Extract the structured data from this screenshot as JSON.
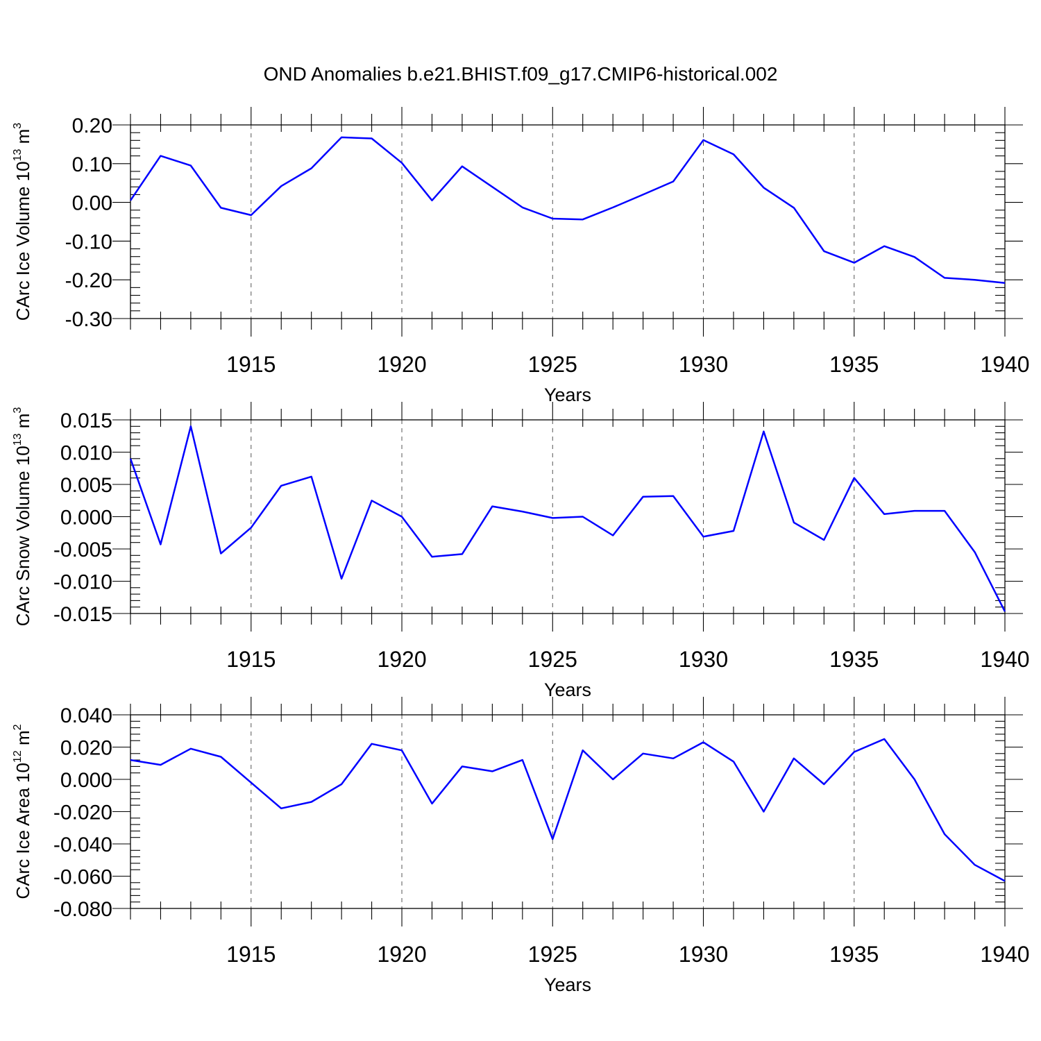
{
  "title": "OND Anomalies b.e21.BHIST.f09_g17.CMIP6-historical.002",
  "colors": {
    "line": "#0000ff",
    "frame": "#000000",
    "grid": "#555555"
  },
  "chart_data": [
    {
      "type": "line",
      "name": "ice-volume",
      "ylabel": {
        "main": "CArc Ice Volume 10",
        "exp": "13",
        "unit": " m",
        "unit_exp": "3"
      },
      "xlabel": "Years",
      "xlim": [
        1911,
        1940
      ],
      "ylim": [
        -0.3,
        0.2
      ],
      "xticks": [
        1915,
        1920,
        1925,
        1930,
        1935,
        1940
      ],
      "xtick_labels": [
        "1915",
        "1920",
        "1925",
        "1930",
        "1935",
        "1940"
      ],
      "yticks": [
        0.2,
        0.1,
        0.0,
        -0.1,
        -0.2,
        -0.3
      ],
      "ytick_labels": [
        "0.20",
        "0.10",
        "0.00",
        "-0.10",
        "-0.20",
        "-0.30"
      ],
      "grid_x": [
        1915,
        1920,
        1925,
        1930,
        1935
      ],
      "x": [
        1911,
        1912,
        1913,
        1914,
        1915,
        1916,
        1917,
        1918,
        1919,
        1920,
        1921,
        1922,
        1923,
        1924,
        1925,
        1926,
        1927,
        1928,
        1929,
        1930,
        1931,
        1932,
        1933,
        1934,
        1935,
        1936,
        1937,
        1938,
        1939,
        1940
      ],
      "values": [
        0.005,
        0.12,
        0.095,
        -0.014,
        -0.033,
        0.042,
        0.088,
        0.168,
        0.165,
        0.102,
        0.005,
        0.093,
        0.04,
        -0.013,
        -0.042,
        -0.044,
        -0.013,
        0.02,
        0.054,
        0.161,
        0.124,
        0.038,
        -0.014,
        -0.126,
        -0.156,
        -0.113,
        -0.141,
        -0.195,
        -0.2,
        -0.208
      ]
    },
    {
      "type": "line",
      "name": "snow-volume",
      "ylabel": {
        "main": "CArc Snow Volume 10",
        "exp": "13",
        "unit": " m",
        "unit_exp": "3"
      },
      "xlabel": "Years",
      "xlim": [
        1911,
        1940
      ],
      "ylim": [
        -0.015,
        0.015
      ],
      "xticks": [
        1915,
        1920,
        1925,
        1930,
        1935,
        1940
      ],
      "xtick_labels": [
        "1915",
        "1920",
        "1925",
        "1930",
        "1935",
        "1940"
      ],
      "yticks": [
        0.015,
        0.01,
        0.005,
        0.0,
        -0.005,
        -0.01,
        -0.015
      ],
      "ytick_labels": [
        "0.015",
        "0.010",
        "0.005",
        "0.000",
        "-0.005",
        "-0.010",
        "-0.015"
      ],
      "grid_x": [
        1915,
        1920,
        1925,
        1930,
        1935
      ],
      "x": [
        1911,
        1912,
        1913,
        1914,
        1915,
        1916,
        1917,
        1918,
        1919,
        1920,
        1921,
        1922,
        1923,
        1924,
        1925,
        1926,
        1927,
        1928,
        1929,
        1930,
        1931,
        1932,
        1933,
        1934,
        1935,
        1936,
        1937,
        1938,
        1939,
        1940
      ],
      "values": [
        0.009,
        -0.0043,
        0.014,
        -0.0057,
        -0.0017,
        0.0048,
        0.0062,
        -0.0096,
        0.0025,
        0.0,
        -0.0062,
        -0.0058,
        0.0016,
        0.0008,
        -0.0002,
        0.0,
        -0.0029,
        0.0031,
        0.0032,
        -0.0031,
        -0.0022,
        0.0132,
        -0.0009,
        -0.0036,
        0.006,
        0.0004,
        0.0009,
        0.0009,
        -0.0055,
        -0.0147
      ]
    },
    {
      "type": "line",
      "name": "ice-area",
      "ylabel": {
        "main": "CArc Ice Area 10",
        "exp": "12",
        "unit": " m",
        "unit_exp": "2"
      },
      "xlabel": "Years",
      "xlim": [
        1911,
        1940
      ],
      "ylim": [
        -0.08,
        0.04
      ],
      "xticks": [
        1915,
        1920,
        1925,
        1930,
        1935,
        1940
      ],
      "xtick_labels": [
        "1915",
        "1920",
        "1925",
        "1930",
        "1935",
        "1940"
      ],
      "yticks": [
        0.04,
        0.02,
        0.0,
        -0.02,
        -0.04,
        -0.06,
        -0.08
      ],
      "ytick_labels": [
        "0.040",
        "0.020",
        "0.000",
        "-0.020",
        "-0.040",
        "-0.060",
        "-0.080"
      ],
      "grid_x": [
        1915,
        1920,
        1925,
        1930,
        1935
      ],
      "x": [
        1911,
        1912,
        1913,
        1914,
        1915,
        1916,
        1917,
        1918,
        1919,
        1920,
        1921,
        1922,
        1923,
        1924,
        1925,
        1926,
        1927,
        1928,
        1929,
        1930,
        1931,
        1932,
        1933,
        1934,
        1935,
        1936,
        1937,
        1938,
        1939,
        1940
      ],
      "values": [
        0.012,
        0.009,
        0.019,
        0.014,
        -0.002,
        -0.018,
        -0.014,
        -0.003,
        0.022,
        0.018,
        -0.015,
        0.008,
        0.005,
        0.012,
        -0.037,
        0.018,
        0.0,
        0.016,
        0.013,
        0.023,
        0.011,
        -0.02,
        0.013,
        -0.003,
        0.017,
        0.025,
        0.0,
        -0.034,
        -0.053,
        -0.063
      ]
    }
  ]
}
